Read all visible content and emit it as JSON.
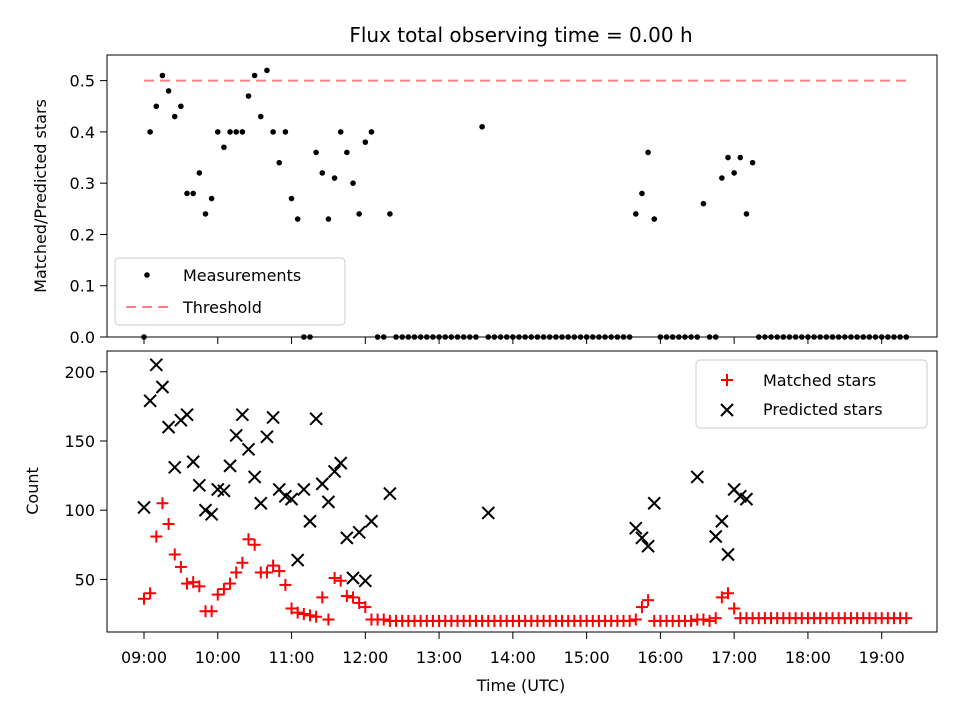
{
  "chart_data": [
    {
      "type": "scatter",
      "title": "Flux total observing time = 0.00 h",
      "xlabel": "",
      "ylabel": "Matched/Predicted stars",
      "ylim": [
        0,
        0.55
      ],
      "yticks": [
        "0.0",
        "0.1",
        "0.2",
        "0.3",
        "0.4",
        "0.5"
      ],
      "legend": {
        "position": "lower-left",
        "entries": [
          "Measurements",
          "Threshold"
        ]
      },
      "threshold": {
        "name": "Threshold",
        "y": 0.5,
        "x_range": [
          "09:00",
          "19:20"
        ],
        "color": "#ff7f7f"
      },
      "series": [
        {
          "name": "Measurements",
          "color": "#000000",
          "x": [
            "09:00",
            "09:05",
            "09:10",
            "09:15",
            "09:20",
            "09:25",
            "09:30",
            "09:35",
            "09:40",
            "09:45",
            "09:50",
            "09:55",
            "10:00",
            "10:05",
            "10:10",
            "10:15",
            "10:20",
            "10:25",
            "10:30",
            "10:35",
            "10:40",
            "10:45",
            "10:50",
            "10:55",
            "11:00",
            "11:05",
            "11:10",
            "11:15",
            "11:20",
            "11:25",
            "11:30",
            "11:35",
            "11:40",
            "11:45",
            "11:50",
            "11:55",
            "12:00",
            "12:05",
            "12:10",
            "12:15",
            "12:20",
            "12:25",
            "12:30",
            "12:35",
            "12:40",
            "12:45",
            "12:50",
            "12:55",
            "13:00",
            "13:05",
            "13:10",
            "13:15",
            "13:20",
            "13:25",
            "13:30",
            "13:35",
            "13:40",
            "13:45",
            "13:50",
            "13:55",
            "14:00",
            "14:05",
            "14:10",
            "14:15",
            "14:20",
            "14:25",
            "14:30",
            "14:35",
            "14:40",
            "14:45",
            "14:50",
            "14:55",
            "15:00",
            "15:05",
            "15:10",
            "15:15",
            "15:20",
            "15:25",
            "15:30",
            "15:35",
            "15:40",
            "15:45",
            "15:50",
            "15:55",
            "16:00",
            "16:05",
            "16:10",
            "16:15",
            "16:20",
            "16:25",
            "16:30",
            "16:35",
            "16:40",
            "16:45",
            "16:50",
            "16:55",
            "17:00",
            "17:05",
            "17:10",
            "17:15",
            "17:20",
            "17:25",
            "17:30",
            "17:35",
            "17:40",
            "17:45",
            "17:50",
            "17:55",
            "18:00",
            "18:05",
            "18:10",
            "18:15",
            "18:20",
            "18:25",
            "18:30",
            "18:35",
            "18:40",
            "18:45",
            "18:50",
            "18:55",
            "19:00",
            "19:05",
            "19:10",
            "19:15",
            "19:20"
          ],
          "y": [
            0.0,
            0.4,
            0.45,
            0.51,
            0.48,
            0.43,
            0.45,
            0.28,
            0.28,
            0.32,
            0.24,
            0.27,
            0.4,
            0.37,
            0.4,
            0.4,
            0.4,
            0.47,
            0.51,
            0.43,
            0.52,
            0.4,
            0.34,
            0.4,
            0.27,
            0.23,
            0.0,
            0.0,
            0.36,
            0.32,
            0.23,
            0.31,
            0.4,
            0.36,
            0.3,
            0.24,
            0.38,
            0.4,
            0.0,
            0.0,
            0.24,
            0.0,
            0.0,
            0.0,
            0.0,
            0.0,
            0.0,
            0.0,
            0.0,
            0.0,
            0.0,
            0.0,
            0.0,
            0.0,
            0.0,
            0.41,
            0.0,
            0.0,
            0.0,
            0.0,
            0.0,
            0.0,
            0.0,
            0.0,
            0.0,
            0.0,
            0.0,
            0.0,
            0.0,
            0.0,
            0.0,
            0.0,
            0.0,
            0.0,
            0.0,
            0.0,
            0.0,
            0.0,
            0.0,
            0.0,
            0.24,
            0.28,
            0.36,
            0.23,
            0.0,
            0.0,
            0.0,
            0.0,
            0.0,
            0.0,
            0.0,
            0.26,
            0.0,
            0.0,
            0.31,
            0.35,
            0.32,
            0.35,
            0.24,
            0.34,
            0.0,
            0.0,
            0.0,
            0.0,
            0.0,
            0.0,
            0.0,
            0.0,
            0.0,
            0.0,
            0.0,
            0.0,
            0.0,
            0.0,
            0.0,
            0.0,
            0.0,
            0.0,
            0.0,
            0.0,
            0.0,
            0.0,
            0.0,
            0.0,
            0.0
          ]
        }
      ]
    },
    {
      "type": "scatter",
      "title": "",
      "xlabel": "Time (UTC)",
      "ylabel": "Count",
      "ylim": [
        12,
        215
      ],
      "yticks": [
        "50",
        "100",
        "150",
        "200"
      ],
      "xticks": [
        "09:00",
        "10:00",
        "11:00",
        "12:00",
        "13:00",
        "14:00",
        "15:00",
        "16:00",
        "17:00",
        "18:00",
        "19:00"
      ],
      "legend": {
        "position": "top-right",
        "entries": [
          "Matched stars",
          "Predicted stars"
        ]
      },
      "series": [
        {
          "name": "Matched stars",
          "color": "#ff0000",
          "marker": "+",
          "x": [
            "09:00",
            "09:05",
            "09:10",
            "09:15",
            "09:20",
            "09:25",
            "09:30",
            "09:35",
            "09:40",
            "09:45",
            "09:50",
            "09:55",
            "10:00",
            "10:05",
            "10:10",
            "10:15",
            "10:20",
            "10:25",
            "10:30",
            "10:35",
            "10:40",
            "10:45",
            "10:50",
            "10:55",
            "11:00",
            "11:05",
            "11:10",
            "11:15",
            "11:20",
            "11:25",
            "11:30",
            "11:35",
            "11:40",
            "11:45",
            "11:50",
            "11:55",
            "12:00",
            "12:05",
            "12:10",
            "12:15",
            "12:20",
            "12:25",
            "12:30",
            "12:35",
            "12:40",
            "12:45",
            "12:50",
            "12:55",
            "13:00",
            "13:05",
            "13:10",
            "13:15",
            "13:20",
            "13:25",
            "13:30",
            "13:35",
            "13:40",
            "13:45",
            "13:50",
            "13:55",
            "14:00",
            "14:05",
            "14:10",
            "14:15",
            "14:20",
            "14:25",
            "14:30",
            "14:35",
            "14:40",
            "14:45",
            "14:50",
            "14:55",
            "15:00",
            "15:05",
            "15:10",
            "15:15",
            "15:20",
            "15:25",
            "15:30",
            "15:35",
            "15:40",
            "15:45",
            "15:50",
            "15:55",
            "16:00",
            "16:05",
            "16:10",
            "16:15",
            "16:20",
            "16:25",
            "16:30",
            "16:35",
            "16:40",
            "16:45",
            "16:50",
            "16:55",
            "17:00",
            "17:05",
            "17:10",
            "17:15",
            "17:20",
            "17:25",
            "17:30",
            "17:35",
            "17:40",
            "17:45",
            "17:50",
            "17:55",
            "18:00",
            "18:05",
            "18:10",
            "18:15",
            "18:20",
            "18:25",
            "18:30",
            "18:35",
            "18:40",
            "18:45",
            "18:50",
            "18:55",
            "19:00",
            "19:05",
            "19:10",
            "19:15",
            "19:20"
          ],
          "y": [
            36,
            40,
            81,
            105,
            90,
            68,
            59,
            47,
            48,
            45,
            27,
            27,
            39,
            43,
            47,
            55,
            62,
            79,
            75,
            55,
            55,
            60,
            56,
            46,
            29,
            26,
            25,
            24,
            23,
            37,
            21,
            51,
            49,
            38,
            37,
            33,
            30,
            21,
            21,
            21,
            20,
            20,
            20,
            20,
            20,
            20,
            20,
            20,
            20,
            20,
            20,
            20,
            20,
            20,
            20,
            20,
            20,
            20,
            20,
            20,
            20,
            20,
            20,
            20,
            20,
            20,
            20,
            20,
            20,
            20,
            20,
            20,
            20,
            20,
            20,
            20,
            20,
            20,
            20,
            20,
            21,
            30,
            35,
            20,
            20,
            20,
            20,
            20,
            20,
            20,
            21,
            21,
            20,
            22,
            37,
            40,
            29,
            22,
            22,
            22,
            22,
            22,
            22,
            22,
            22,
            22,
            22,
            22,
            22,
            22,
            22,
            22,
            22,
            22,
            22,
            22,
            22,
            22,
            22,
            22,
            22,
            22,
            22,
            22,
            22
          ]
        },
        {
          "name": "Predicted stars",
          "color": "#000000",
          "marker": "x",
          "x": [
            "09:00",
            "09:05",
            "09:10",
            "09:15",
            "09:20",
            "09:25",
            "09:30",
            "09:35",
            "09:40",
            "09:45",
            "09:50",
            "09:55",
            "10:00",
            "10:05",
            "10:10",
            "10:15",
            "10:20",
            "10:25",
            "10:30",
            "10:35",
            "10:40",
            "10:45",
            "10:50",
            "10:55",
            "11:00",
            "11:05",
            "11:10",
            "11:15",
            "11:20",
            "11:25",
            "11:30",
            "11:35",
            "11:40",
            "11:45",
            "11:50",
            "11:55",
            "12:00",
            "12:05",
            "12:20",
            "13:40",
            "15:40",
            "15:45",
            "15:50",
            "15:55",
            "16:30",
            "16:45",
            "16:50",
            "16:55",
            "17:00",
            "17:05",
            "17:10"
          ],
          "y": [
            102,
            179,
            205,
            189,
            160,
            131,
            165,
            169,
            135,
            118,
            100,
            97,
            115,
            114,
            132,
            154,
            169,
            144,
            124,
            105,
            153,
            167,
            115,
            110,
            108,
            64,
            115,
            92,
            166,
            119,
            106,
            128,
            134,
            80,
            51,
            84,
            49,
            92,
            112,
            98,
            87,
            80,
            74,
            105,
            124,
            81,
            92,
            68,
            115,
            110,
            108
          ]
        }
      ]
    }
  ]
}
